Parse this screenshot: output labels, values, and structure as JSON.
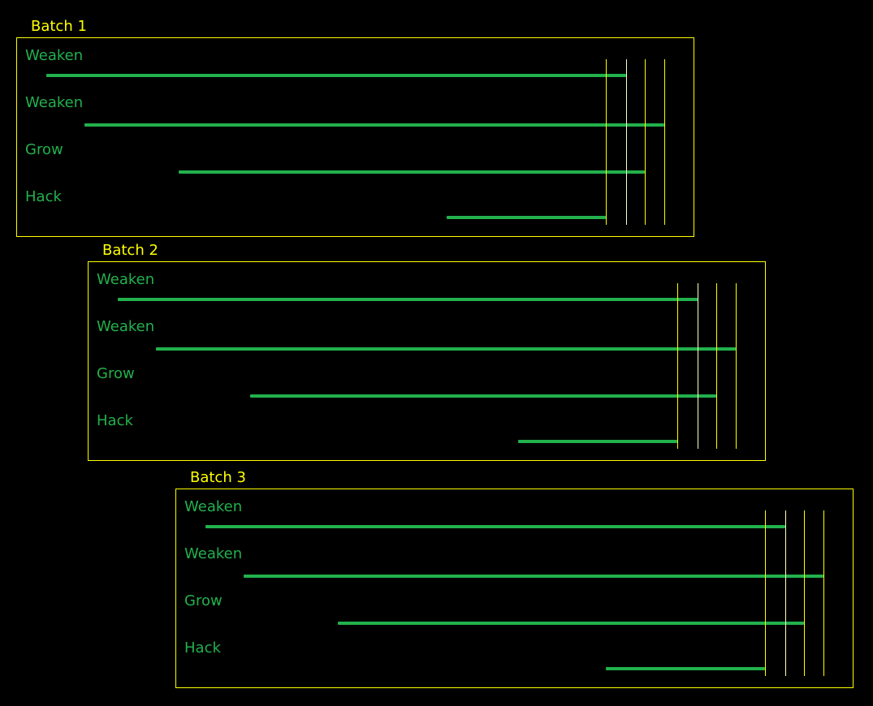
{
  "colors": {
    "frame": "#ffff00",
    "operation": "#22b14c",
    "background": "#000000"
  },
  "batches": [
    {
      "title": "Batch 1",
      "operations": [
        {
          "label": "Weaken"
        },
        {
          "label": "Weaken"
        },
        {
          "label": "Grow"
        },
        {
          "label": "Hack"
        }
      ]
    },
    {
      "title": "Batch 2",
      "operations": [
        {
          "label": "Weaken"
        },
        {
          "label": "Weaken"
        },
        {
          "label": "Grow"
        },
        {
          "label": "Hack"
        }
      ]
    },
    {
      "title": "Batch 3",
      "operations": [
        {
          "label": "Weaken"
        },
        {
          "label": "Weaken"
        },
        {
          "label": "Grow"
        },
        {
          "label": "Hack"
        }
      ]
    }
  ]
}
